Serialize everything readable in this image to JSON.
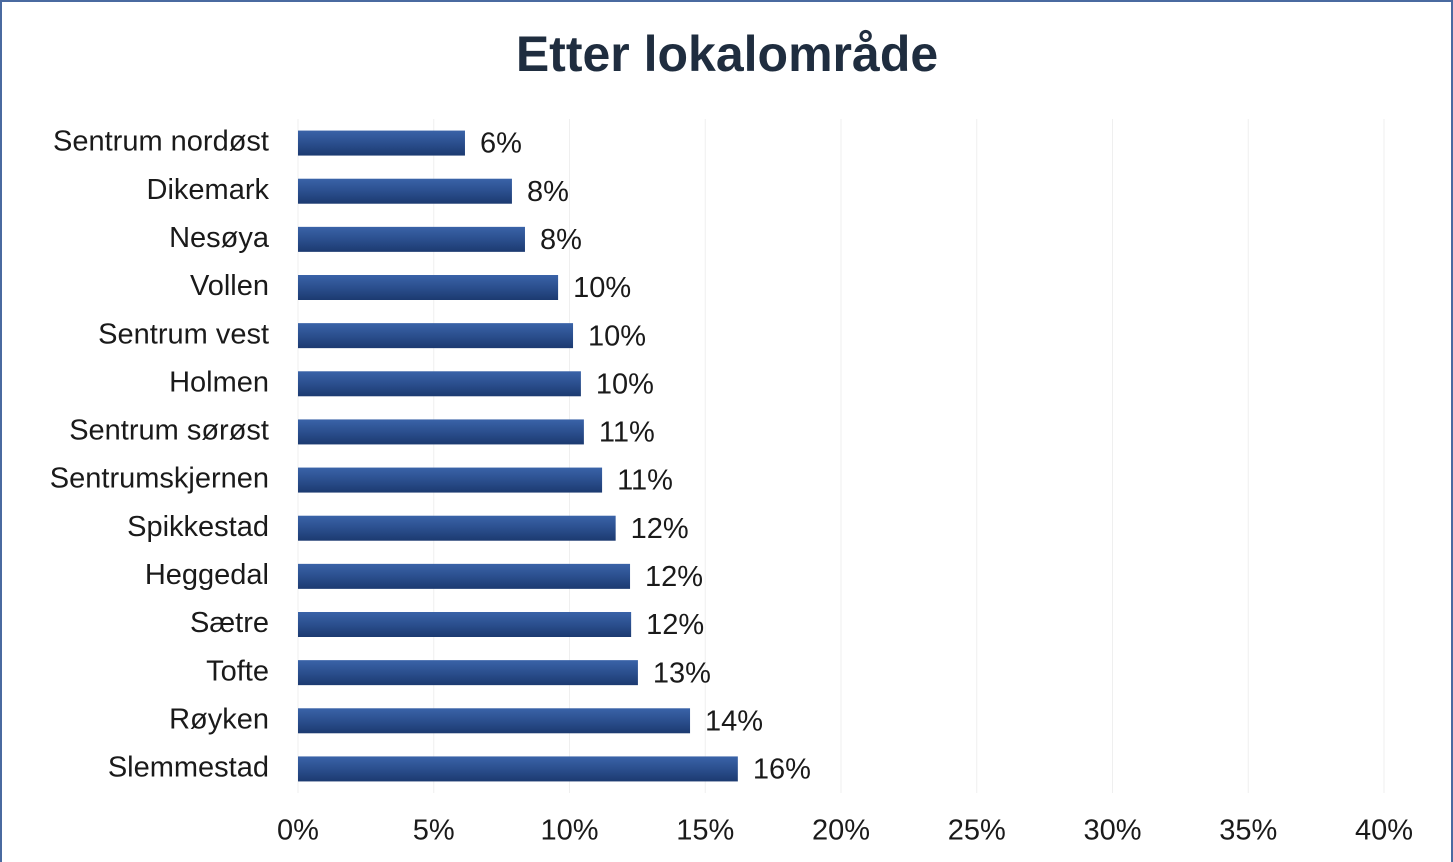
{
  "chart_data": {
    "type": "bar",
    "orientation": "horizontal",
    "title": "Etter lokalområde",
    "categories": [
      "Sentrum nordøst",
      "Dikemark",
      "Nesøya",
      "Vollen",
      "Sentrum vest",
      "Holmen",
      "Sentrum sørøst",
      "Sentrumskjernen",
      "Spikkestad",
      "Heggedal",
      "Sætre",
      "Tofte",
      "Røyken",
      "Slemmestad"
    ],
    "values": [
      6.15,
      7.88,
      8.36,
      9.58,
      10.13,
      10.42,
      10.53,
      11.2,
      11.7,
      12.23,
      12.27,
      12.52,
      14.44,
      16.2
    ],
    "value_labels": [
      "6%",
      "8%",
      "8%",
      "10%",
      "10%",
      "10%",
      "11%",
      "11%",
      "12%",
      "12%",
      "12%",
      "13%",
      "14%",
      "16%"
    ],
    "color": "#2b4f8e",
    "xlim": [
      0,
      40
    ],
    "xticks": [
      {
        "value": 0,
        "label": "0%"
      },
      {
        "value": 5,
        "label": "5%"
      },
      {
        "value": 10,
        "label": "10%"
      },
      {
        "value": 15,
        "label": "15%"
      },
      {
        "value": 20,
        "label": "20%"
      },
      {
        "value": 25,
        "label": "25%"
      },
      {
        "value": 30,
        "label": "30%"
      },
      {
        "value": 35,
        "label": "35%"
      },
      {
        "value": 40,
        "label": "40%"
      }
    ],
    "grid": true
  }
}
